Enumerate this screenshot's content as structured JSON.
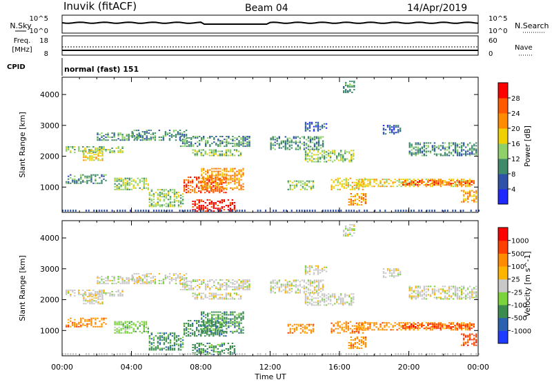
{
  "header": {
    "station": "Inuvik (fitACF)",
    "beam": "Beam 04",
    "date": "14/Apr/2019"
  },
  "top_panel": {
    "left_label": "N.Sky",
    "right_label": "N.Search",
    "left_ticks": [
      "10^5",
      "10^0"
    ],
    "right_ticks": [
      "10^5",
      "10^0"
    ]
  },
  "freq_panel": {
    "left_label_1": "Freq.",
    "left_label_2": "[MHz]",
    "right_label": "Nave",
    "left_ticks": [
      "18",
      "8"
    ],
    "right_ticks": [
      "60",
      "0"
    ]
  },
  "cpid": {
    "label": "CPID",
    "value": "normal (fast) 151"
  },
  "chart_data": [
    {
      "type": "heatmap",
      "title": "",
      "xlabel": "Time UT",
      "ylabel": "Slant Range [km]",
      "x_ticks": [
        "00:00",
        "04:00",
        "08:00",
        "12:00",
        "16:00",
        "20:00",
        "00:00"
      ],
      "xlim_hours": [
        0,
        24
      ],
      "y_ticks": [
        "1000",
        "2000",
        "3000",
        "4000"
      ],
      "ylim": [
        180,
        4560
      ],
      "colorbar_label": "Power [dB]",
      "colorbar_ticks": [
        "4",
        "8",
        "12",
        "16",
        "20",
        "24",
        "28"
      ],
      "colorbar_colors": [
        "#1e28ff",
        "#2f52a8",
        "#3f8a6a",
        "#8fd06a",
        "#f0d000",
        "#ff8c00",
        "#ff5a00",
        "#ff0000"
      ]
    },
    {
      "type": "heatmap",
      "title": "",
      "xlabel": "Time UT",
      "ylabel": "Slant Range [km]",
      "x_ticks": [
        "00:00",
        "04:00",
        "08:00",
        "12:00",
        "16:00",
        "20:00",
        "00:00"
      ],
      "xlim_hours": [
        0,
        24
      ],
      "y_ticks": [
        "1000",
        "2000",
        "3000",
        "4000"
      ],
      "ylim": [
        180,
        4560
      ],
      "colorbar_label": "Velocity [m s^-1]",
      "colorbar_ticks": [
        "1000",
        "500",
        "100",
        "25",
        "-25",
        "-100",
        "-500",
        "-1000"
      ],
      "colorbar_colors": [
        "#1e3cff",
        "#2a62b0",
        "#3c8c50",
        "#7ad23c",
        "#c8c8c8",
        "#ffb400",
        "#ff8c00",
        "#ff4000",
        "#ff0000"
      ]
    }
  ],
  "time_axis_label": "Time UT"
}
